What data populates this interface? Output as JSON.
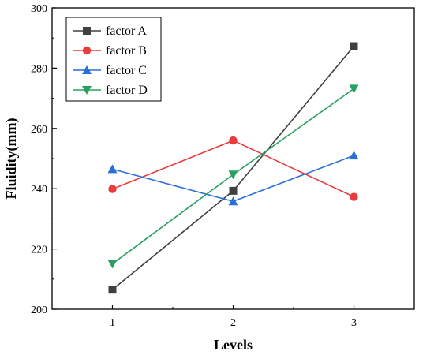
{
  "chart_data": {
    "type": "line",
    "title": "",
    "xlabel": "Levels",
    "ylabel": "Fluidity(mm)",
    "x": [
      1,
      2,
      3
    ],
    "xticks": [
      "1",
      "2",
      "3"
    ],
    "xlim": [
      0.5,
      3.5
    ],
    "ylim": [
      200,
      300
    ],
    "yticks": [
      200,
      220,
      240,
      260,
      280,
      300
    ],
    "legend_position": "top-left",
    "grid": false,
    "series": [
      {
        "name": "factor A",
        "values": [
          206.5,
          239.3,
          287.3
        ],
        "color": "#404040",
        "marker": "square"
      },
      {
        "name": "factor B",
        "values": [
          239.9,
          256.0,
          237.3
        ],
        "color": "#e83b3b",
        "marker": "circle"
      },
      {
        "name": "factor C",
        "values": [
          246.5,
          235.8,
          251.0
        ],
        "color": "#2a6fd6",
        "marker": "triangle-up"
      },
      {
        "name": "factor D",
        "values": [
          215.1,
          244.7,
          273.2
        ],
        "color": "#2aa060",
        "marker": "triangle-down"
      }
    ]
  }
}
